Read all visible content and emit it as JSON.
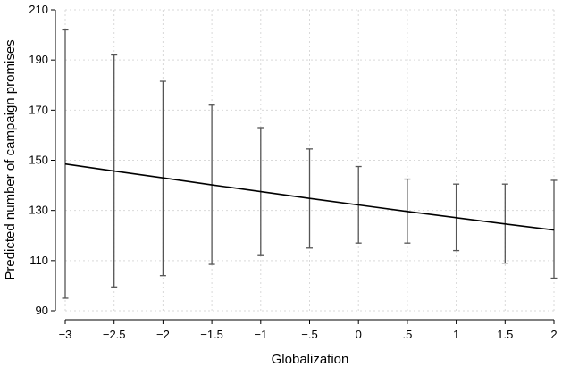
{
  "chart_data": {
    "type": "line",
    "title": "",
    "xlabel": "Globalization",
    "ylabel": "Predicted number of campaign promises",
    "xlim": [
      -3,
      2
    ],
    "ylim": [
      90,
      210
    ],
    "grid": true,
    "x_ticks": [
      -3,
      -2.5,
      -2,
      -1.5,
      -1,
      -0.5,
      0,
      0.5,
      1,
      1.5,
      2
    ],
    "x_tick_labels": [
      "−3",
      "−2.5",
      "−2",
      "−1.5",
      "−1",
      "−.5",
      "0",
      ".5",
      "1",
      "1.5",
      "2"
    ],
    "y_ticks": [
      90,
      110,
      130,
      150,
      170,
      190,
      210
    ],
    "y_tick_labels": [
      "90",
      "110",
      "130",
      "150",
      "170",
      "190",
      "210"
    ],
    "series": [
      {
        "x": [
          -3,
          -2.5,
          -2,
          -1.5,
          -1,
          -0.5,
          0,
          0.5,
          1,
          1.5,
          2
        ],
        "y": [
          148.5,
          145.7,
          143.0,
          140.2,
          137.5,
          134.8,
          132.2,
          129.6,
          127.1,
          124.6,
          122.2
        ],
        "lower": [
          95,
          99.5,
          104,
          108.5,
          112,
          115,
          117,
          117,
          114,
          109,
          103
        ],
        "upper": [
          202,
          192,
          181.5,
          172,
          163,
          154.5,
          147.5,
          142.5,
          140.5,
          140.5,
          142
        ]
      }
    ],
    "colors": {
      "line": "#000000",
      "errorbar": "#555555",
      "grid": "#d9d9d9",
      "axis": "#000000"
    }
  }
}
